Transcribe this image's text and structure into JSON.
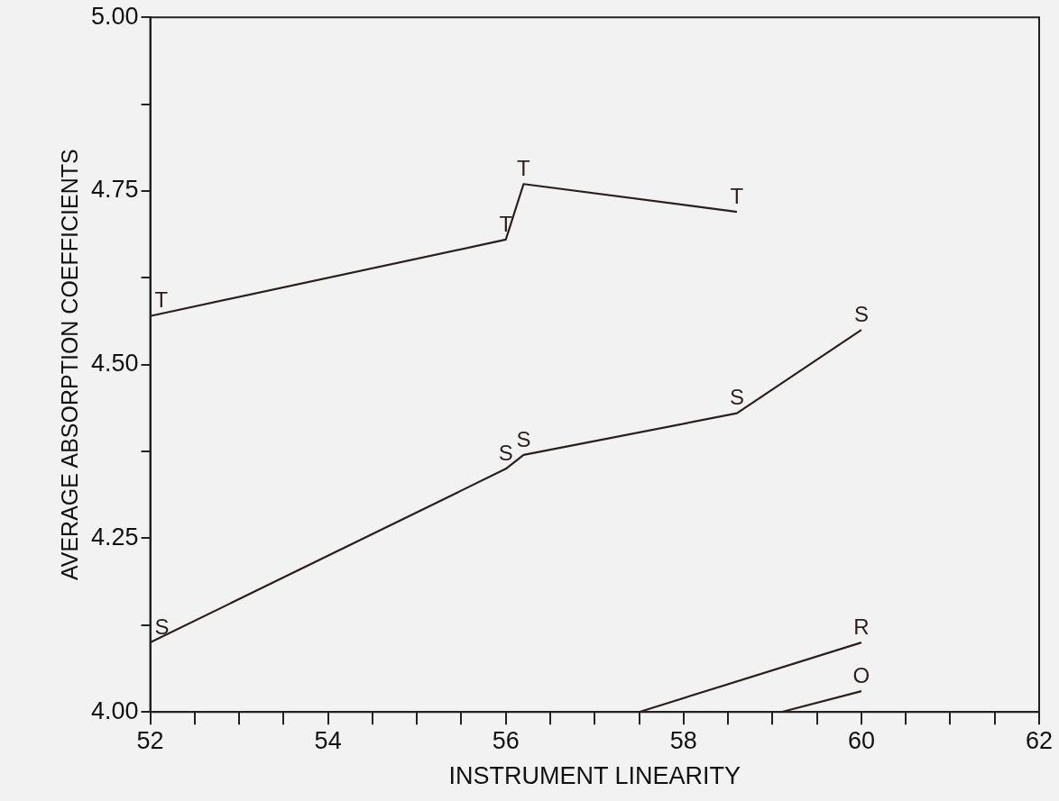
{
  "chart_data": {
    "type": "line",
    "xlabel": "INSTRUMENT LINEARITY",
    "ylabel": "AVERAGE ABSORPTION COEFFICIENTS",
    "xlim": [
      52,
      62
    ],
    "ylim": [
      4,
      5
    ],
    "xticks": [
      52,
      {
        "value": 52.5,
        "label": null
      },
      54,
      {
        "value": 54.5,
        "label": null
      },
      {
        "value": 53,
        "label": null
      },
      {
        "value": 53.5,
        "label": null
      },
      {
        "value": 55,
        "label": null
      },
      {
        "value": 55.5,
        "label": null
      },
      56,
      {
        "value": 56.5,
        "label": null
      },
      {
        "value": 57,
        "label": null
      },
      {
        "value": 57.5,
        "label": null
      },
      58,
      {
        "value": 58.5,
        "label": null
      },
      {
        "value": 59,
        "label": null
      },
      {
        "value": 59.5,
        "label": null
      },
      60,
      {
        "value": 60.5,
        "label": null
      },
      {
        "value": 61,
        "label": null
      },
      {
        "value": 61.5,
        "label": null
      },
      62
    ],
    "yticks": [
      {
        "value": 4,
        "label": "4.00"
      },
      {
        "value": 4.125,
        "label": null
      },
      {
        "value": 4.25,
        "label": "4.25"
      },
      {
        "value": 4.375,
        "label": null
      },
      {
        "value": 4.5,
        "label": "4.50"
      },
      {
        "value": 4.625,
        "label": null
      },
      {
        "value": 4.75,
        "label": "4.75"
      },
      {
        "value": 4.875,
        "label": null
      },
      {
        "value": 5,
        "label": "5.00"
      }
    ],
    "grid": false,
    "legend": false,
    "line_style": "solid",
    "series": [
      {
        "name": "T",
        "color": "#2a1e1e",
        "x": [
          52,
          56,
          56.2,
          58.6
        ],
        "values": [
          4.57,
          4.68,
          4.76,
          4.72
        ]
      },
      {
        "name": "S",
        "color": "#2a1e1e",
        "x": [
          52,
          56,
          56.2,
          58.6,
          60
        ],
        "values": [
          4.1,
          4.35,
          4.37,
          4.43,
          4.55
        ]
      },
      {
        "name": "R",
        "color": "#2a1e1e",
        "x": [
          57.5,
          60
        ],
        "values": [
          4,
          4.1
        ]
      },
      {
        "name": "O",
        "color": "#2a1e1e",
        "x": [
          59.1,
          60
        ],
        "values": [
          4,
          4.03
        ]
      }
    ]
  }
}
